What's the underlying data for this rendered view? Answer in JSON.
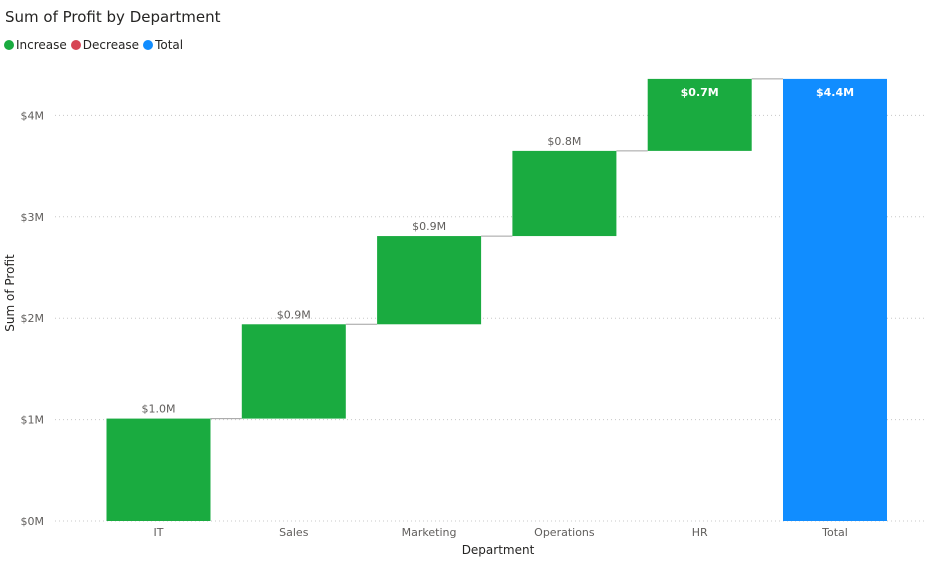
{
  "chart_data": {
    "type": "waterfall",
    "title": "Sum of Profit by Department",
    "xlabel": "Department",
    "ylabel": "Sum of Profit",
    "ylim": [
      0,
      4400000
    ],
    "yticks": [
      {
        "value": 0,
        "label": "$0M"
      },
      {
        "value": 1000000,
        "label": "$1M"
      },
      {
        "value": 2000000,
        "label": "$2M"
      },
      {
        "value": 3000000,
        "label": "$3M"
      },
      {
        "value": 4000000,
        "label": "$4M"
      }
    ],
    "grid": "horizontal-dotted",
    "legend_position": "top-left",
    "legend": [
      {
        "label": "Increase",
        "color": "#1AAB40"
      },
      {
        "label": "Decrease",
        "color": "#D64554"
      },
      {
        "label": "Total",
        "color": "#118DFF"
      }
    ],
    "categories": [
      "IT",
      "Sales",
      "Marketing",
      "Operations",
      "HR",
      "Total"
    ],
    "values": [
      1010000,
      930000,
      870000,
      840000,
      710000,
      4360000
    ],
    "kinds": [
      "increase",
      "increase",
      "increase",
      "increase",
      "increase",
      "total"
    ],
    "data_labels": [
      "$1.0M",
      "$0.9M",
      "$0.9M",
      "$0.8M",
      "$0.7M",
      "$4.4M"
    ]
  }
}
